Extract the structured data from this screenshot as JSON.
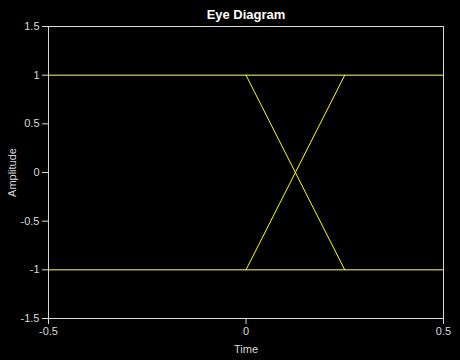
{
  "chart_data": {
    "type": "line",
    "title": "Eye Diagram",
    "x_label": "Time",
    "y_label": "Amplitude",
    "series": [
      {
        "x": [
          -0.5,
          0.5
        ],
        "values": [
          1,
          1
        ],
        "color": "#ffff66"
      },
      {
        "x": [
          -0.5,
          0.5
        ],
        "values": [
          -1,
          -1
        ],
        "color": "#ffff66"
      },
      {
        "x": [
          0,
          0.25
        ],
        "values": [
          1,
          -1
        ],
        "color": "#ffff00"
      },
      {
        "x": [
          0,
          0.25
        ],
        "values": [
          -1,
          1
        ],
        "color": "#ffff00"
      }
    ],
    "xlim": [
      -0.5,
      0.5
    ],
    "xticks": [
      -0.5,
      0,
      0.5
    ],
    "ylim": [
      -1.5,
      1.5
    ],
    "yticks": [
      -1.5,
      -1,
      -0.5,
      0,
      0.5,
      1,
      1.5
    ],
    "grid": false
  }
}
